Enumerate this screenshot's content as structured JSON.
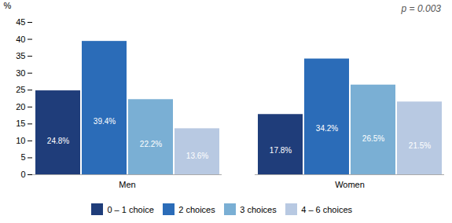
{
  "chart_data": {
    "type": "bar",
    "categories": [
      "Men",
      "Women"
    ],
    "series": [
      {
        "name": "0 – 1 choice",
        "color": "#1f3d7a",
        "values": [
          24.8,
          17.8
        ],
        "value_labels": [
          "24.8%",
          "17.8%"
        ]
      },
      {
        "name": "2 choices",
        "color": "#2b6cb8",
        "values": [
          39.4,
          34.2
        ],
        "value_labels": [
          "39.4%",
          "34.2%"
        ]
      },
      {
        "name": "3 choices",
        "color": "#7aafd4",
        "values": [
          22.2,
          26.5
        ],
        "value_labels": [
          "22.2%",
          "26.5%"
        ]
      },
      {
        "name": "4 – 6 choices",
        "color": "#b8c9e2",
        "values": [
          13.6,
          21.5
        ],
        "value_labels": [
          "13.6%",
          "21.5%"
        ]
      }
    ],
    "ylabel": "%",
    "ylim": [
      0,
      45
    ],
    "yticks": [
      0,
      5,
      10,
      15,
      20,
      25,
      30,
      35,
      40,
      45
    ],
    "annotation": "p = 0.003",
    "data_labels": true,
    "legend": "bottom",
    "grid": false
  }
}
